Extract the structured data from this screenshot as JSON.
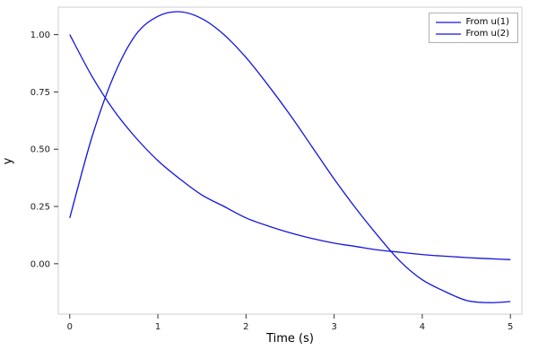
{
  "figure": {
    "background": "#ffffff",
    "frame_color": "#cfcfcf",
    "tick_color": "#333333",
    "tick_label_color": "#1a1a1a"
  },
  "chart_data": {
    "type": "line",
    "title": "",
    "xlabel": "Time (s)",
    "ylabel": "y",
    "xlim": [
      -0.13,
      5.13
    ],
    "ylim": [
      -0.22,
      1.12
    ],
    "grid": false,
    "legend_position": "top-right",
    "xticks": [
      0,
      1,
      2,
      3,
      4,
      5
    ],
    "xtick_labels": [
      "0",
      "1",
      "2",
      "3",
      "4",
      "5"
    ],
    "yticks": [
      0.0,
      0.25,
      0.5,
      0.75,
      1.0
    ],
    "ytick_labels": [
      "0.00",
      "0.25",
      "0.50",
      "0.75",
      "1.00"
    ],
    "x": [
      0,
      0.25,
      0.5,
      0.75,
      1,
      1.25,
      1.5,
      1.75,
      2,
      2.25,
      2.5,
      2.75,
      3,
      3.25,
      3.5,
      3.75,
      4,
      4.25,
      4.5,
      4.75,
      5
    ],
    "series": [
      {
        "name": "From u(1)",
        "color": "#1414e0",
        "values": [
          0.2,
          0.55,
          0.82,
          1.0,
          1.08,
          1.1,
          1.07,
          1.0,
          0.9,
          0.78,
          0.65,
          0.51,
          0.37,
          0.24,
          0.12,
          0.01,
          -0.07,
          -0.12,
          -0.16,
          -0.17,
          -0.165
        ]
      },
      {
        "name": "From u(2)",
        "color": "#1414e0",
        "values": [
          1.0,
          0.82,
          0.67,
          0.55,
          0.45,
          0.37,
          0.3,
          0.25,
          0.2,
          0.165,
          0.135,
          0.11,
          0.09,
          0.075,
          0.06,
          0.05,
          0.04,
          0.033,
          0.027,
          0.022,
          0.018
        ]
      }
    ]
  }
}
